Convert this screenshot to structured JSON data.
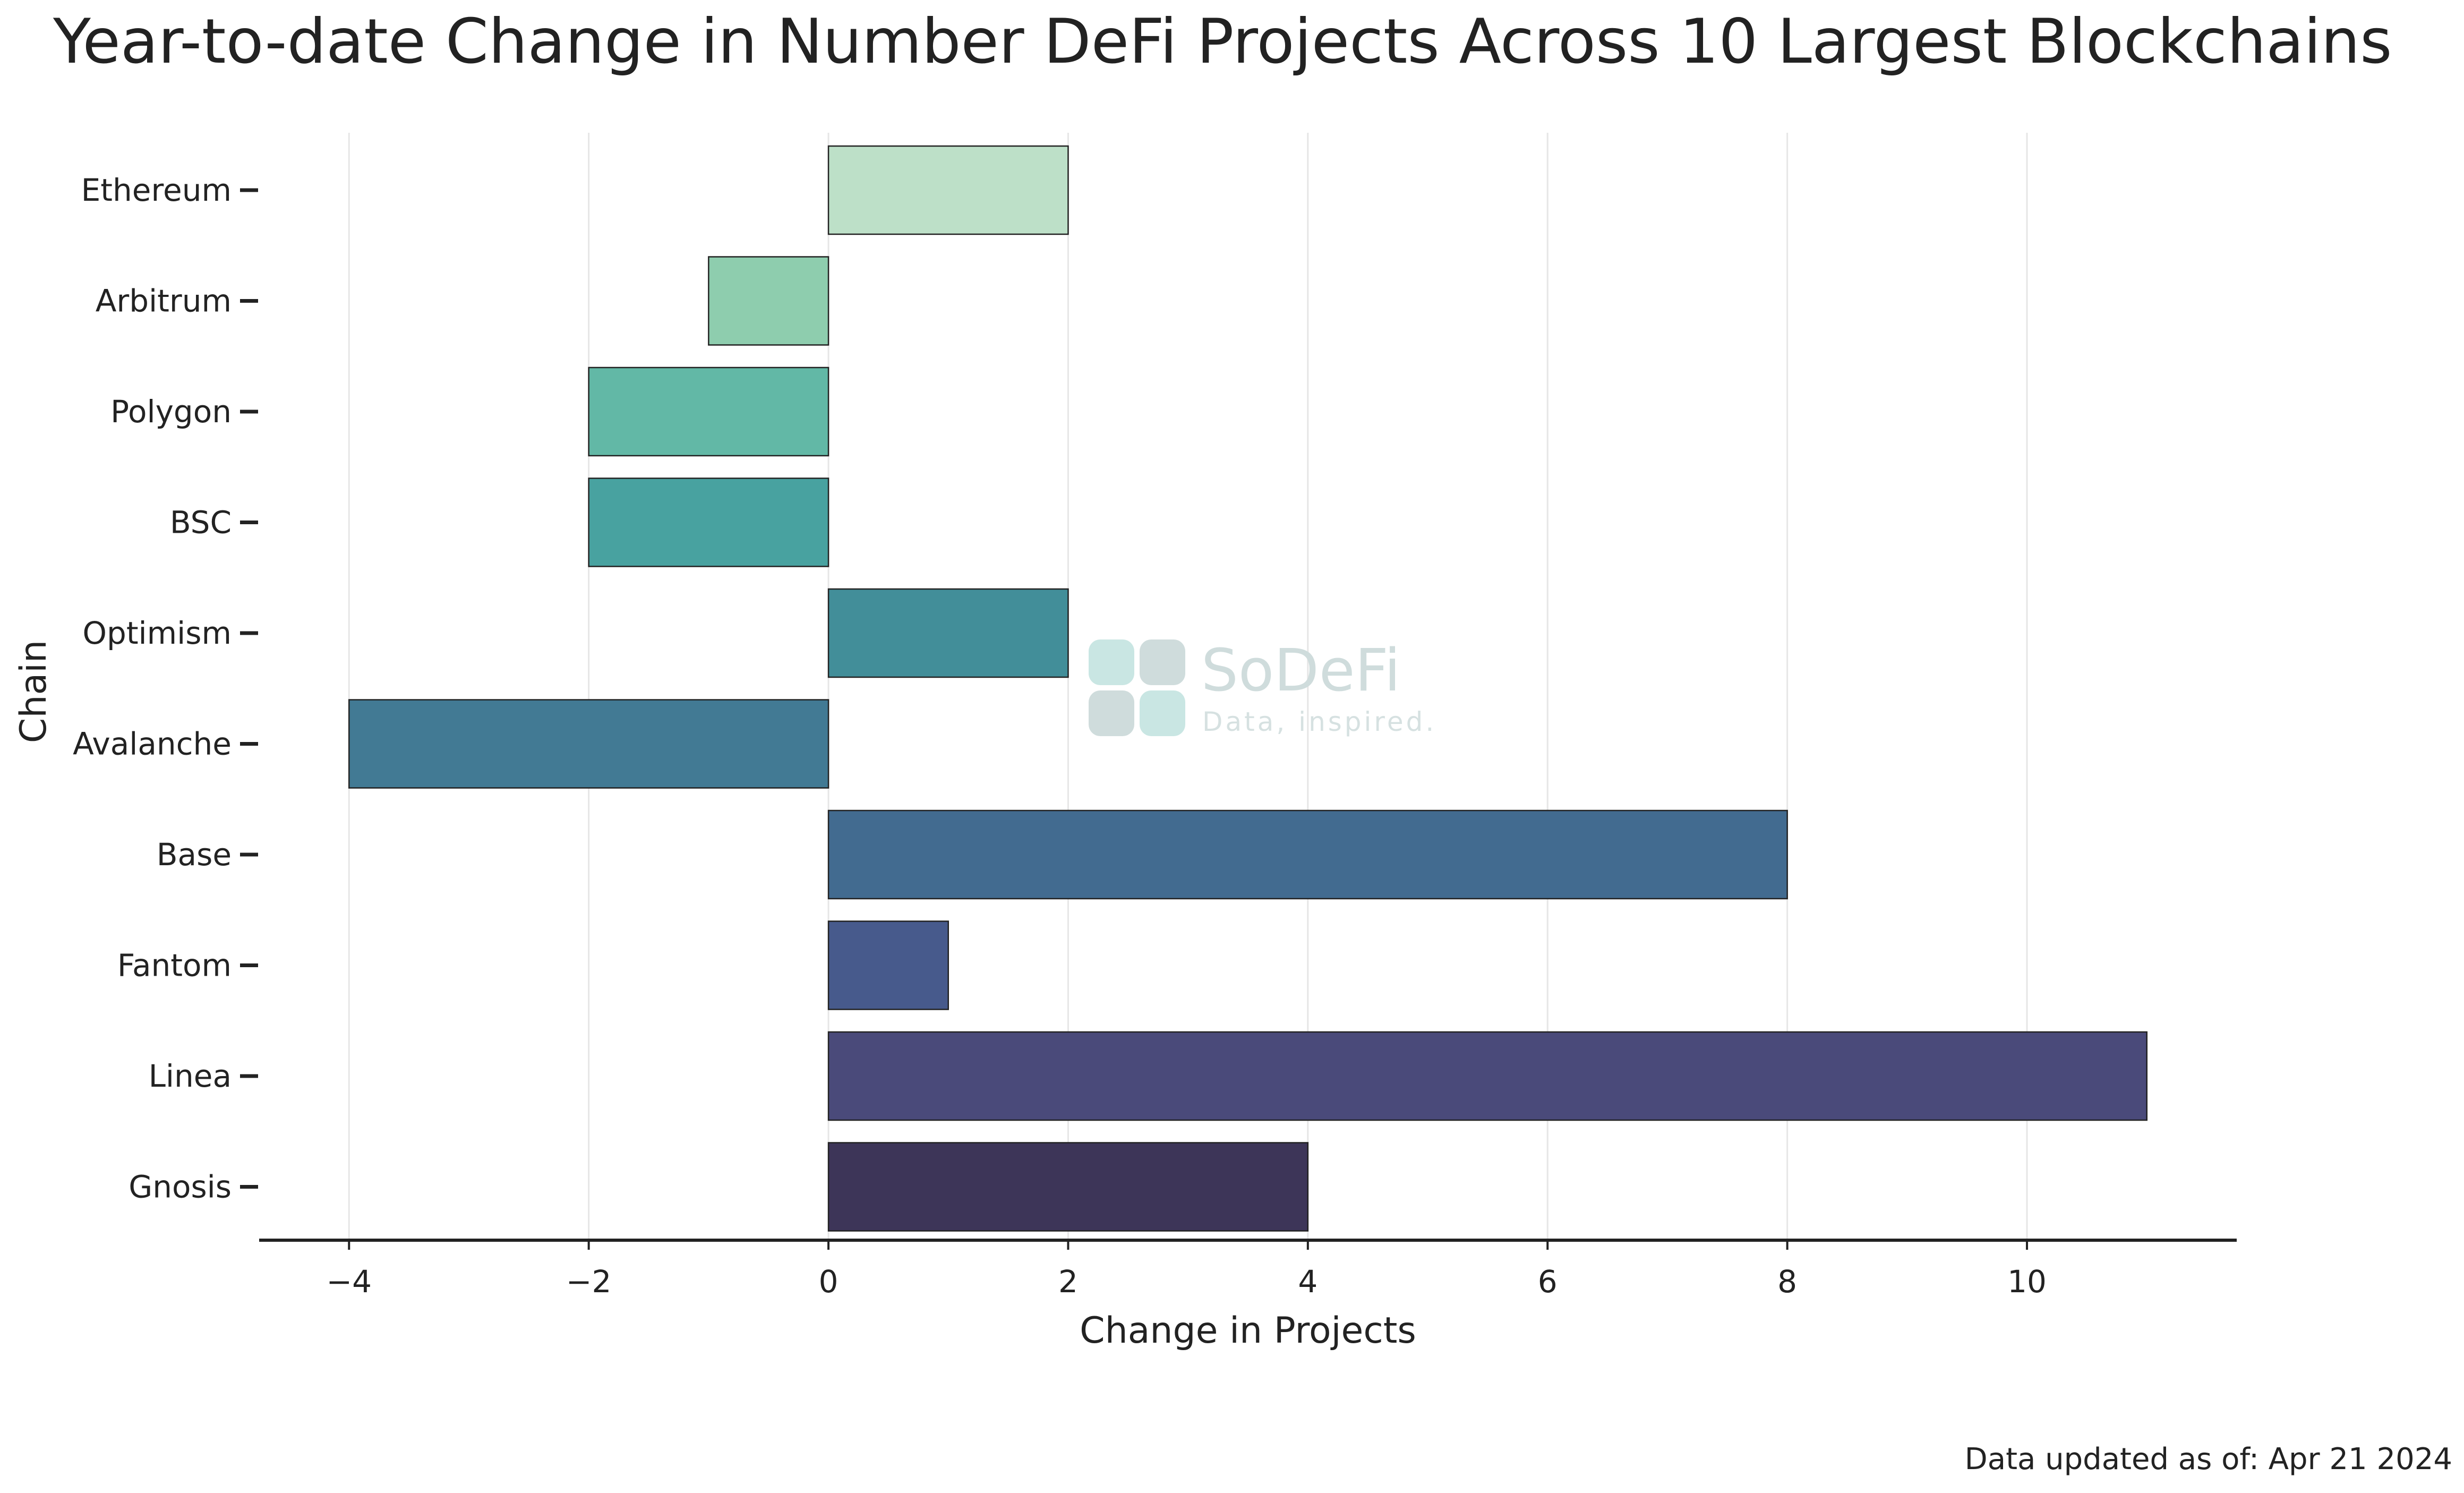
{
  "chart_data": {
    "type": "bar",
    "orientation": "horizontal",
    "title": "Year-to-date Change in Number DeFi Projects Across 10 Largest Blockchains",
    "xlabel": "Change in Projects",
    "ylabel": "Chain",
    "categories": [
      "Ethereum",
      "Arbitrum",
      "Polygon",
      "BSC",
      "Optimism",
      "Avalanche",
      "Base",
      "Fantom",
      "Linea",
      "Gnosis"
    ],
    "values": [
      2,
      -1,
      -2,
      -2,
      2,
      -4,
      8,
      1,
      11,
      4
    ],
    "colors": [
      "#bde0c8",
      "#8ecdae",
      "#62b8a6",
      "#48a2a0",
      "#428e99",
      "#427a94",
      "#426b90",
      "#475a8c",
      "#4a4a7a",
      "#3d3558"
    ],
    "xlim": [
      -4.75,
      11.75
    ],
    "xticks": [
      -4,
      -2,
      0,
      2,
      4,
      6,
      8,
      10
    ],
    "xtick_labels": [
      "−4",
      "−2",
      "0",
      "2",
      "4",
      "6",
      "8",
      "10"
    ],
    "grid": "vertical",
    "legend": "none"
  },
  "watermark": {
    "name": "SoDeFi",
    "tagline": "Data, inspired."
  },
  "footer": {
    "updated": "Data updated as of: Apr 21 2024"
  }
}
